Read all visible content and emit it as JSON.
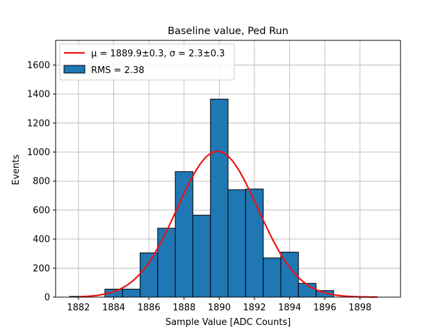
{
  "chart_data": {
    "type": "bar",
    "title": "Baseline value, Ped Run",
    "xlabel": "Sample Value [ADC Counts]",
    "ylabel": "Events",
    "xlim": [
      1880.7,
      1900.3
    ],
    "ylim": [
      0,
      1770
    ],
    "xticks": [
      1882,
      1884,
      1886,
      1888,
      1890,
      1892,
      1894,
      1896,
      1898
    ],
    "yticks": [
      0,
      200,
      400,
      600,
      800,
      1000,
      1200,
      1400,
      1600
    ],
    "grid": true,
    "legend_position": "top-left",
    "bar_color": "#1f77b4",
    "fit_color": "#ee1111",
    "bins": [
      {
        "x0": 1881.5,
        "x1": 1882.5,
        "value": 5
      },
      {
        "x0": 1883.5,
        "x1": 1884.5,
        "value": 55
      },
      {
        "x0": 1884.5,
        "x1": 1885.5,
        "value": 55
      },
      {
        "x0": 1885.5,
        "x1": 1886.5,
        "value": 305
      },
      {
        "x0": 1886.5,
        "x1": 1887.5,
        "value": 475
      },
      {
        "x0": 1887.5,
        "x1": 1888.5,
        "value": 865
      },
      {
        "x0": 1888.5,
        "x1": 1889.5,
        "value": 565
      },
      {
        "x0": 1889.5,
        "x1": 1890.5,
        "value": 1365
      },
      {
        "x0": 1890.5,
        "x1": 1891.5,
        "value": 740
      },
      {
        "x0": 1891.5,
        "x1": 1892.5,
        "value": 745
      },
      {
        "x0": 1892.5,
        "x1": 1893.5,
        "value": 270
      },
      {
        "x0": 1893.5,
        "x1": 1894.5,
        "value": 310
      },
      {
        "x0": 1894.5,
        "x1": 1895.5,
        "value": 95
      },
      {
        "x0": 1895.5,
        "x1": 1896.5,
        "value": 45
      }
    ],
    "fit": {
      "type": "gaussian",
      "mu": 1889.9,
      "sigma": 2.3,
      "amplitude": 1005,
      "x_range": [
        1882,
        1899
      ]
    },
    "legend": [
      {
        "kind": "line",
        "label": "μ = 1889.9±0.3, σ = 2.3±0.3"
      },
      {
        "kind": "patch",
        "label": "RMS = 2.38"
      }
    ]
  }
}
